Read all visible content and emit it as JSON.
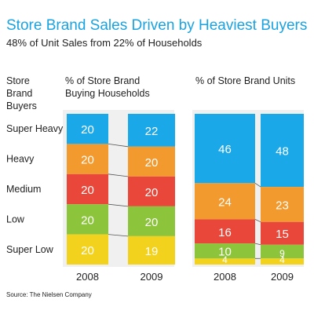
{
  "colors": {
    "title": "#1aa3e0",
    "text": "#222222",
    "panel_bg": "#f0f0f0",
    "series": {
      "Super Heavy": "#1aa8e8",
      "Heavy": "#f39a2e",
      "Medium": "#e8473a",
      "Low": "#8cc43c",
      "Super Low": "#f2d21c"
    }
  },
  "chart_data": {
    "type": "bar",
    "stacked": true,
    "normalized_percent": true,
    "title": "Store Brand Sales Driven by Heaviest Buyers",
    "subtitle": "48% of Unit Sales from 22% of Households",
    "row_header": [
      "Store",
      "Brand",
      "Buyers"
    ],
    "categories_order_top_to_bottom": [
      "Super Heavy",
      "Heavy",
      "Medium",
      "Low",
      "Super Low"
    ],
    "source": "Source: The Nielsen Company",
    "panels": [
      {
        "header": [
          "% of Store Brand",
          "Buying Households"
        ],
        "x": [
          "2008",
          "2009"
        ],
        "series": [
          {
            "name": "Super Heavy",
            "values": [
              20,
              22
            ]
          },
          {
            "name": "Heavy",
            "values": [
              20,
              20
            ]
          },
          {
            "name": "Medium",
            "values": [
              20,
              20
            ]
          },
          {
            "name": "Low",
            "values": [
              20,
              20
            ]
          },
          {
            "name": "Super Low",
            "values": [
              20,
              19
            ]
          }
        ]
      },
      {
        "header": [
          "% of Store Brand Units"
        ],
        "x": [
          "2008",
          "2009"
        ],
        "series": [
          {
            "name": "Super Heavy",
            "values": [
              46,
              48
            ]
          },
          {
            "name": "Heavy",
            "values": [
              24,
              23
            ]
          },
          {
            "name": "Medium",
            "values": [
              16,
              15
            ]
          },
          {
            "name": "Low",
            "values": [
              10,
              9
            ]
          },
          {
            "name": "Super Low",
            "values": [
              4,
              4
            ]
          }
        ]
      }
    ]
  }
}
